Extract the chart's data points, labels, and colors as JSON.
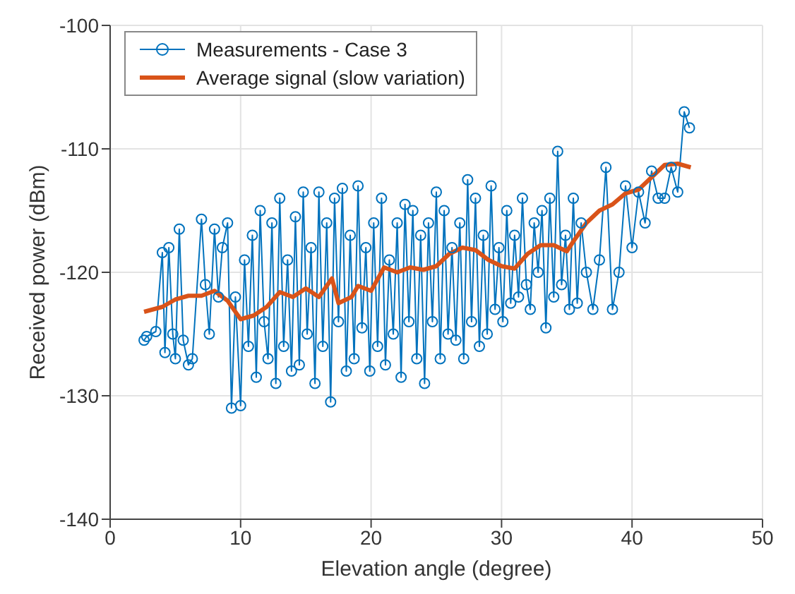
{
  "chart_data": {
    "type": "line",
    "xlabel": "Elevation angle (degree)",
    "ylabel": "Received power (dBm)",
    "xlim": [
      0,
      50
    ],
    "xticks": [
      0,
      10,
      20,
      30,
      40,
      50
    ],
    "ylim": [
      -140,
      -100
    ],
    "yticks": [
      -140,
      -130,
      -120,
      -110,
      -100
    ],
    "grid": true,
    "legend": "top left",
    "series": [
      {
        "name": "Measurements - Case 3",
        "color": "#0072bd",
        "marker": "circle",
        "line_style": "solid",
        "x": [
          2.6,
          2.8,
          3.5,
          4,
          4.2,
          4.5,
          4.8,
          5,
          5.3,
          5.6,
          6,
          6.3,
          7,
          7.3,
          7.6,
          8,
          8.3,
          8.6,
          9,
          9.3,
          9.6,
          10,
          10.3,
          10.6,
          10.9,
          11.2,
          11.5,
          11.8,
          12.1,
          12.4,
          12.7,
          13,
          13.3,
          13.6,
          13.9,
          14.2,
          14.5,
          14.8,
          15.1,
          15.4,
          15.7,
          16,
          16.3,
          16.6,
          16.9,
          17.2,
          17.5,
          17.8,
          18.1,
          18.4,
          18.7,
          19,
          19.3,
          19.6,
          19.9,
          20.2,
          20.5,
          20.8,
          21.1,
          21.4,
          21.7,
          22,
          22.3,
          22.6,
          22.9,
          23.2,
          23.5,
          23.8,
          24.1,
          24.4,
          24.7,
          25,
          25.3,
          25.6,
          25.9,
          26.2,
          26.5,
          26.8,
          27.1,
          27.4,
          27.7,
          28,
          28.3,
          28.6,
          28.9,
          29.2,
          29.5,
          29.8,
          30.1,
          30.4,
          30.7,
          31,
          31.3,
          31.6,
          31.9,
          32.2,
          32.5,
          32.8,
          33.1,
          33.4,
          33.7,
          34,
          34.3,
          34.6,
          34.9,
          35.2,
          35.5,
          35.8,
          36.1,
          36.5,
          37,
          37.5,
          38,
          38.5,
          39,
          39.5,
          40,
          40.5,
          41,
          41.5,
          42,
          42.5,
          43,
          43.5,
          44,
          44.4
        ],
        "values": [
          -125.5,
          -125.2,
          -124.8,
          -118.4,
          -126.5,
          -118,
          -125,
          -127,
          -116.5,
          -125.5,
          -127.5,
          -127,
          -115.7,
          -121,
          -125,
          -116.5,
          -122,
          -118,
          -116,
          -131,
          -122,
          -130.8,
          -119,
          -126,
          -117,
          -128.5,
          -115,
          -124,
          -127,
          -116,
          -129,
          -114,
          -126,
          -119,
          -128,
          -115.5,
          -127.5,
          -113.5,
          -125,
          -118,
          -129,
          -113.5,
          -126,
          -116,
          -130.5,
          -114,
          -124,
          -113.2,
          -128,
          -117,
          -127,
          -113,
          -124.5,
          -118,
          -128,
          -116,
          -126,
          -114,
          -127.5,
          -119,
          -125,
          -116,
          -128.5,
          -114.5,
          -124,
          -115,
          -127,
          -117,
          -129,
          -116,
          -124,
          -113.5,
          -127,
          -115,
          -125,
          -118,
          -125.5,
          -116,
          -127,
          -112.5,
          -124,
          -114,
          -126,
          -117,
          -125,
          -113,
          -123,
          -118,
          -124,
          -115,
          -122.5,
          -117,
          -122,
          -114,
          -121,
          -123,
          -116,
          -120,
          -115,
          -124.5,
          -114,
          -122,
          -110.2,
          -121,
          -117,
          -123,
          -114,
          -122.5,
          -116,
          -120,
          -123,
          -119,
          -111.5,
          -123,
          -120,
          -113,
          -118,
          -113.5,
          -116,
          -111.8,
          -114,
          -114,
          -111.5,
          -113.5,
          -107,
          -108.3
        ]
      },
      {
        "name": "Average signal (slow variation)",
        "color": "#d95319",
        "marker": "none",
        "line_style": "solid",
        "x": [
          2.6,
          4,
          5,
          6,
          7,
          8,
          9,
          10,
          11,
          12,
          13,
          14,
          15,
          16,
          17,
          17.5,
          18.5,
          19,
          20,
          21,
          22,
          23,
          24,
          25,
          26,
          27,
          28,
          29,
          30,
          31,
          32,
          33,
          34,
          35,
          35.5,
          36.5,
          37.5,
          38.5,
          39.5,
          40.5,
          41.5,
          42.5,
          43.5,
          44.5
        ],
        "values": [
          -123.2,
          -122.8,
          -122.2,
          -121.9,
          -121.9,
          -121.5,
          -122.3,
          -123.8,
          -123.5,
          -122.8,
          -121.6,
          -122,
          -121.3,
          -122,
          -120.5,
          -122.5,
          -122,
          -121.1,
          -121.5,
          -119.6,
          -120,
          -119.6,
          -119.8,
          -119.5,
          -118.5,
          -118,
          -118.2,
          -119,
          -119.5,
          -119.7,
          -118.5,
          -117.8,
          -117.8,
          -118.3,
          -117.5,
          -116,
          -115,
          -114.5,
          -113.6,
          -113.3,
          -112.3,
          -111.3,
          -111.2,
          -111.5
        ]
      }
    ]
  }
}
